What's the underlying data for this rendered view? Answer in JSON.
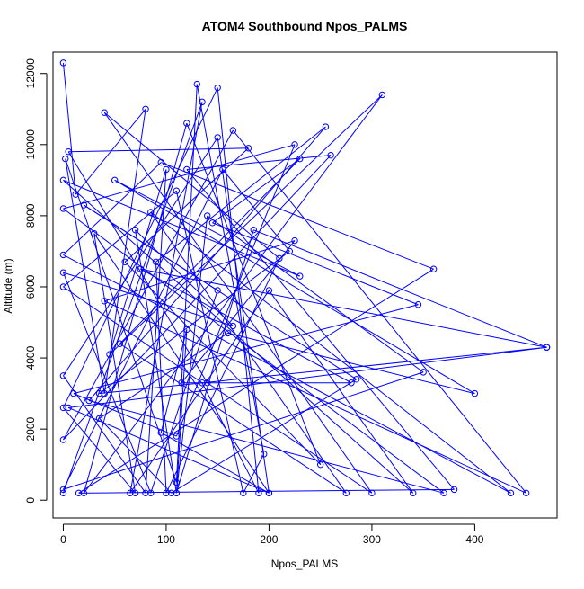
{
  "chart_data": {
    "type": "line",
    "title": "ATOM4 Southbound Npos_PALMS",
    "xlabel": "Npos_PALMS",
    "ylabel": "Altitude (m)",
    "xlim": [
      -10,
      480
    ],
    "ylim": [
      -500,
      12600
    ],
    "xticks": [
      0,
      100,
      200,
      300,
      400
    ],
    "yticks": [
      0,
      2000,
      4000,
      6000,
      8000,
      10000,
      12000
    ],
    "grid": false,
    "colors": {
      "series": "#0000ff",
      "axis": "#000000",
      "background": "#ffffff"
    },
    "marker": "open-circle",
    "series": [
      {
        "x": [
          0,
          12,
          80,
          40,
          2,
          110,
          130,
          195,
          175,
          110,
          0,
          135,
          190,
          150,
          0,
          70,
          30,
          200,
          150,
          0,
          80,
          100,
          45,
          310,
          20,
          120,
          250,
          60,
          180,
          5,
          140,
          300,
          40,
          210,
          100,
          90,
          255,
          25,
          370,
          0,
          225,
          110,
          10,
          345,
          145,
          230,
          55,
          275,
          85,
          435,
          0,
          95,
          360,
          15,
          380,
          120,
          260,
          0,
          165,
          450,
          40,
          225,
          115,
          280,
          75,
          470,
          35,
          220,
          155,
          0,
          350,
          140,
          110,
          185,
          470,
          5,
          200,
          95,
          120,
          110,
          70,
          165,
          0,
          85,
          150,
          20,
          285,
          105,
          35,
          160,
          400,
          50,
          230,
          0,
          340,
          200,
          65,
          135,
          0
        ],
        "y": [
          12300,
          8600,
          11000,
          3000,
          9600,
          500,
          11700,
          1300,
          200,
          8700,
          6000,
          3300,
          200,
          11600,
          2600,
          200,
          7500,
          200,
          10200,
          3500,
          200,
          9300,
          4100,
          11400,
          200,
          10600,
          1000,
          6700,
          9900,
          9800,
          3300,
          200,
          10900,
          6800,
          200,
          6700,
          10500,
          2800,
          200,
          8200,
          10000,
          1800,
          3000,
          5500,
          7800,
          9600,
          4400,
          200,
          8100,
          200,
          6900,
          9500,
          6500,
          200,
          300,
          9300,
          9700,
          1700,
          10400,
          200,
          5600,
          7300,
          3300,
          3300,
          6500,
          4300,
          3000,
          7000,
          9300,
          300,
          3600,
          8000,
          200,
          7600,
          4300,
          2600,
          200,
          1900,
          4800,
          200,
          7600,
          4900,
          6400,
          200,
          5900,
          8300,
          3400,
          200,
          2300,
          4700,
          3000,
          9000,
          6300,
          9000,
          200,
          5900,
          200,
          11200,
          200
        ]
      }
    ]
  }
}
